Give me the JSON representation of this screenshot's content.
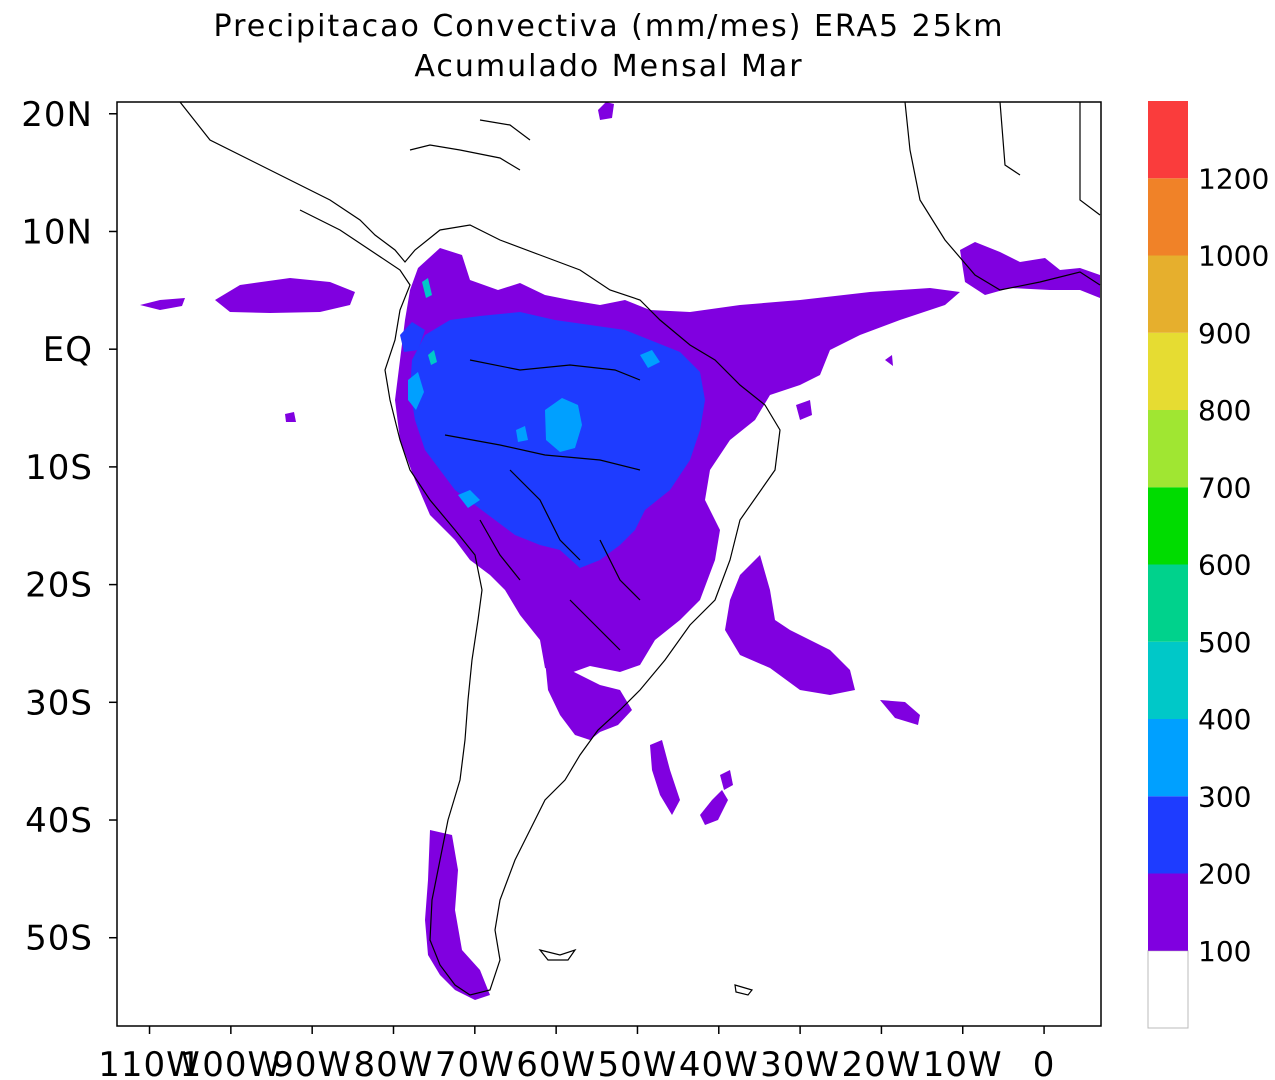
{
  "title_line1": "Precipitacao Convectiva (mm/mes) ERA5  25km",
  "title_line2": "Acumulado Mensal Mar",
  "map": {
    "lon_range": [
      -114,
      7
    ],
    "lat_range": [
      -57.5,
      21
    ],
    "lat_ticks": [
      {
        "value": 20,
        "label": "20N"
      },
      {
        "value": 10,
        "label": "10N"
      },
      {
        "value": 0,
        "label": "EQ"
      },
      {
        "value": -10,
        "label": "10S"
      },
      {
        "value": -20,
        "label": "20S"
      },
      {
        "value": -30,
        "label": "30S"
      },
      {
        "value": -40,
        "label": "40S"
      },
      {
        "value": -50,
        "label": "50S"
      }
    ],
    "lon_ticks": [
      {
        "value": -110,
        "label": "110W"
      },
      {
        "value": -100,
        "label": "100W"
      },
      {
        "value": -90,
        "label": "90W"
      },
      {
        "value": -80,
        "label": "80W"
      },
      {
        "value": -70,
        "label": "70W"
      },
      {
        "value": -60,
        "label": "60W"
      },
      {
        "value": -50,
        "label": "50W"
      },
      {
        "value": -40,
        "label": "40W"
      },
      {
        "value": -30,
        "label": "30W"
      },
      {
        "value": -20,
        "label": "20W"
      },
      {
        "value": -10,
        "label": "10W"
      },
      {
        "value": 0,
        "label": "0"
      }
    ]
  },
  "colorbar": {
    "colors": [
      "#ffffff",
      "#8000e0",
      "#1e3cff",
      "#00a0ff",
      "#00c8c8",
      "#00d28c",
      "#00dc00",
      "#a0e632",
      "#e6dc32",
      "#e6af2d",
      "#f08228",
      "#fa3c3c"
    ],
    "labels": [
      "100",
      "200",
      "300",
      "400",
      "500",
      "600",
      "700",
      "800",
      "900",
      "1000",
      "1200"
    ]
  }
}
